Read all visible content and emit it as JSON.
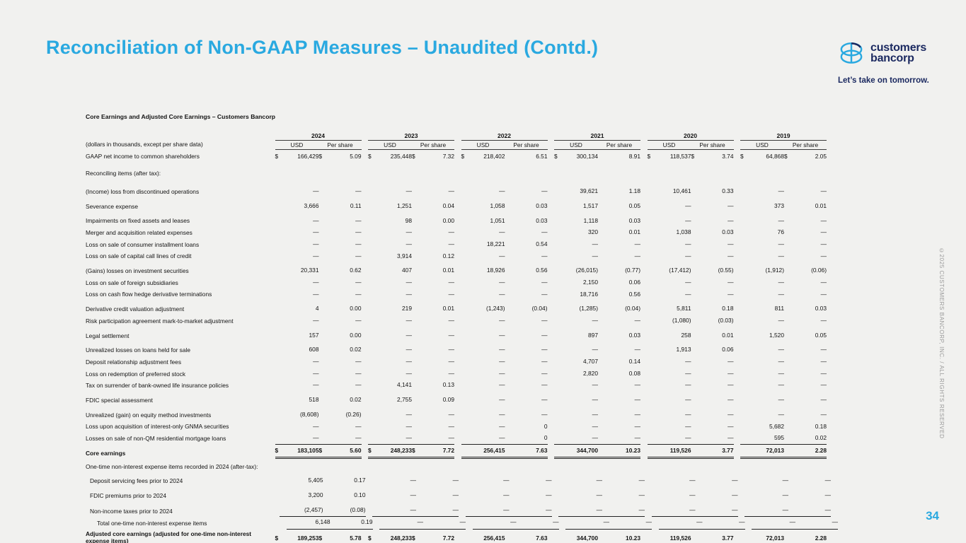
{
  "page": {
    "title": "Reconciliation of Non-GAAP Measures – Unaudited (Contd.)",
    "page_number": "34",
    "copyright": "©2025 CUSTOMERS BANCORP, INC. / ALL RIGHTS RESERVED",
    "colors": {
      "accent_blue": "#2AA9E0",
      "navy": "#1B2960",
      "background": "#F1F1EF"
    }
  },
  "logo": {
    "icon": "customers-bancorp-stacked-ovals-icon",
    "name_line1": "customers",
    "name_line2": "bancorp",
    "tagline": "Let’s take on tomorrow."
  },
  "table": {
    "title": "Core Earnings and Adjusted Core Earnings – Customers Bancorp",
    "note": "(dollars in thousands, except per share data)",
    "years": [
      "2024",
      "2023",
      "2022",
      "2021",
      "2020",
      "2019"
    ],
    "sub_headers": [
      "USD",
      "Per share"
    ],
    "rows": [
      {
        "label": "GAAP net income to common shareholders",
        "cells": [
          [
            "$ 166,429",
            "$ 5.09"
          ],
          [
            "$ 235,448",
            "$ 7.32"
          ],
          [
            "$ 218,402",
            "6.51"
          ],
          [
            "$ 300,134",
            "8.91"
          ],
          [
            "$ 118,537",
            "$ 3.74"
          ],
          [
            "$ 64,868",
            "$ 2.05"
          ]
        ]
      },
      {
        "label": "Reconciling items (after tax):",
        "section": true,
        "gap": "lg"
      },
      {
        "label": "(Income) loss from discontinued operations",
        "gap": "lg",
        "cells": [
          [
            "—",
            "—"
          ],
          [
            "—",
            "—"
          ],
          [
            "—",
            "—"
          ],
          [
            "39,621",
            "1.18"
          ],
          [
            "10,461",
            "0.33"
          ],
          [
            "—",
            "—"
          ]
        ]
      },
      {
        "label": "Severance expense",
        "gap": "md",
        "cells": [
          [
            "3,666",
            "0.11"
          ],
          [
            "1,251",
            "0.04"
          ],
          [
            "1,058",
            "0.03"
          ],
          [
            "1,517",
            "0.05"
          ],
          [
            "—",
            "—"
          ],
          [
            "373",
            "0.01"
          ]
        ]
      },
      {
        "label": "Impairments on fixed assets and leases",
        "gap": "md",
        "cells": [
          [
            "—",
            "—"
          ],
          [
            "98",
            "0.00"
          ],
          [
            "1,051",
            "0.03"
          ],
          [
            "1,118",
            "0.03"
          ],
          [
            "—",
            "—"
          ],
          [
            "—",
            "—"
          ]
        ]
      },
      {
        "label": "Merger and acquisition related expenses",
        "cells": [
          [
            "—",
            "—"
          ],
          [
            "—",
            "—"
          ],
          [
            "—",
            "—"
          ],
          [
            "320",
            "0.01"
          ],
          [
            "1,038",
            "0.03"
          ],
          [
            "76",
            "—"
          ]
        ]
      },
      {
        "label": "Loss on sale of consumer installment loans",
        "cells": [
          [
            "—",
            "—"
          ],
          [
            "—",
            "—"
          ],
          [
            "18,221",
            "0.54"
          ],
          [
            "—",
            "—"
          ],
          [
            "—",
            "—"
          ],
          [
            "—",
            "—"
          ]
        ]
      },
      {
        "label": "Loss on sale of capital call lines of credit",
        "cells": [
          [
            "—",
            "—"
          ],
          [
            "3,914",
            "0.12"
          ],
          [
            "—",
            "—"
          ],
          [
            "—",
            "—"
          ],
          [
            "—",
            "—"
          ],
          [
            "—",
            "—"
          ]
        ]
      },
      {
        "label": "(Gains) losses on investment securities",
        "gap": "md",
        "cells": [
          [
            "20,331",
            "0.62"
          ],
          [
            "407",
            "0.01"
          ],
          [
            "18,926",
            "0.56"
          ],
          [
            "(26,015)",
            "(0.77)"
          ],
          [
            "(17,412)",
            "(0.55)"
          ],
          [
            "(1,912)",
            "(0.06)"
          ]
        ]
      },
      {
        "label": "Loss on sale of foreign subsidiaries",
        "cells": [
          [
            "—",
            "—"
          ],
          [
            "—",
            "—"
          ],
          [
            "—",
            "—"
          ],
          [
            "2,150",
            "0.06"
          ],
          [
            "—",
            "—"
          ],
          [
            "—",
            "—"
          ]
        ]
      },
      {
        "label": "Loss on cash flow hedge derivative terminations",
        "cells": [
          [
            "—",
            "—"
          ],
          [
            "—",
            "—"
          ],
          [
            "—",
            "—"
          ],
          [
            "18,716",
            "0.56"
          ],
          [
            "—",
            "—"
          ],
          [
            "—",
            "—"
          ]
        ]
      },
      {
        "label": "Derivative credit valuation adjustment",
        "gap": "md",
        "cells": [
          [
            "4",
            "0.00"
          ],
          [
            "219",
            "0.01"
          ],
          [
            "(1,243)",
            "(0.04)"
          ],
          [
            "(1,285)",
            "(0.04)"
          ],
          [
            "5,811",
            "0.18"
          ],
          [
            "811",
            "0.03"
          ]
        ]
      },
      {
        "label": "Risk participation agreement mark-to-market adjustment",
        "cells": [
          [
            "—",
            "—"
          ],
          [
            "—",
            "—"
          ],
          [
            "—",
            "—"
          ],
          [
            "—",
            "—"
          ],
          [
            "(1,080)",
            "(0.03)"
          ],
          [
            "—",
            "—"
          ]
        ]
      },
      {
        "label": "Legal settlement",
        "gap": "md",
        "cells": [
          [
            "157",
            "0.00"
          ],
          [
            "—",
            "—"
          ],
          [
            "—",
            "—"
          ],
          [
            "897",
            "0.03"
          ],
          [
            "258",
            "0.01"
          ],
          [
            "1,520",
            "0.05"
          ]
        ]
      },
      {
        "label": "Unrealized losses on loans held for sale",
        "gap": "md",
        "cells": [
          [
            "608",
            "0.02"
          ],
          [
            "—",
            "—"
          ],
          [
            "—",
            "—"
          ],
          [
            "—",
            "—"
          ],
          [
            "1,913",
            "0.06"
          ],
          [
            "—",
            "—"
          ]
        ]
      },
      {
        "label": "Deposit relationship adjustment fees",
        "cells": [
          [
            "—",
            "—"
          ],
          [
            "—",
            "—"
          ],
          [
            "—",
            "—"
          ],
          [
            "4,707",
            "0.14"
          ],
          [
            "—",
            "—"
          ],
          [
            "—",
            "—"
          ]
        ]
      },
      {
        "label": "Loss on redemption of preferred stock",
        "cells": [
          [
            "—",
            "—"
          ],
          [
            "—",
            "—"
          ],
          [
            "—",
            "—"
          ],
          [
            "2,820",
            "0.08"
          ],
          [
            "—",
            "—"
          ],
          [
            "—",
            "—"
          ]
        ]
      },
      {
        "label": "Tax on surrender of bank-owned life insurance policies",
        "cells": [
          [
            "—",
            "—"
          ],
          [
            "4,141",
            "0.13"
          ],
          [
            "—",
            "—"
          ],
          [
            "—",
            "—"
          ],
          [
            "—",
            "—"
          ],
          [
            "—",
            "—"
          ]
        ]
      },
      {
        "label": "FDIC special assessment",
        "gap": "md",
        "cells": [
          [
            "518",
            "0.02"
          ],
          [
            "2,755",
            "0.09"
          ],
          [
            "—",
            "—"
          ],
          [
            "—",
            "—"
          ],
          [
            "—",
            "—"
          ],
          [
            "—",
            "—"
          ]
        ]
      },
      {
        "label": "Unrealized (gain) on equity method investments",
        "gap": "md",
        "cells": [
          [
            "(8,608)",
            "(0.26)"
          ],
          [
            "—",
            "—"
          ],
          [
            "—",
            "—"
          ],
          [
            "—",
            "—"
          ],
          [
            "—",
            "—"
          ],
          [
            "—",
            "—"
          ]
        ]
      },
      {
        "label": "Loss upon acquisition of interest-only GNMA securities",
        "cells": [
          [
            "—",
            "—"
          ],
          [
            "—",
            "—"
          ],
          [
            "—",
            "0"
          ],
          [
            "—",
            "—"
          ],
          [
            "—",
            "—"
          ],
          [
            "5,682",
            "0.18"
          ]
        ]
      },
      {
        "label": "Losses on sale of non-QM residential mortgage loans",
        "cells": [
          [
            "—",
            "—"
          ],
          [
            "—",
            "—"
          ],
          [
            "—",
            "0"
          ],
          [
            "—",
            "—"
          ],
          [
            "—",
            "—"
          ],
          [
            "595",
            "0.02"
          ]
        ]
      },
      {
        "label": "Core earnings",
        "bold": true,
        "rule": "core",
        "cells": [
          [
            "$ 183,105",
            "$ 5.60"
          ],
          [
            "$ 248,233",
            "$ 7.72"
          ],
          [
            "256,415",
            "7.63"
          ],
          [
            "344,700",
            "10.23"
          ],
          [
            "119,526",
            "3.77"
          ],
          [
            "72,013",
            "2.28"
          ]
        ]
      },
      {
        "label": "One-time non-interest expense items recorded in 2024 (after-tax):",
        "section": true,
        "gap": "md"
      },
      {
        "label": "Deposit servicing fees prior to 2024",
        "indent": 1,
        "gap": "md",
        "cells": [
          [
            "5,405",
            "0.17"
          ],
          [
            "—",
            "—"
          ],
          [
            "—",
            "—"
          ],
          [
            "—",
            "—"
          ],
          [
            "—",
            "—"
          ],
          [
            "—",
            "—"
          ]
        ]
      },
      {
        "label": "FDIC premiums prior to 2024",
        "indent": 1,
        "gap": "md",
        "cells": [
          [
            "3,200",
            "0.10"
          ],
          [
            "—",
            "—"
          ],
          [
            "—",
            "—"
          ],
          [
            "—",
            "—"
          ],
          [
            "—",
            "—"
          ],
          [
            "—",
            "—"
          ]
        ]
      },
      {
        "label": "Non-income taxes prior to 2024",
        "indent": 1,
        "gap": "md",
        "rule": "under",
        "cells": [
          [
            "(2,457)",
            "(0.08)"
          ],
          [
            "—",
            "—"
          ],
          [
            "—",
            "—"
          ],
          [
            "—",
            "—"
          ],
          [
            "—",
            "—"
          ],
          [
            "—",
            "—"
          ]
        ]
      },
      {
        "label": "Total one-time non-interest expense items",
        "indent": 2,
        "rule": "under",
        "cells": [
          [
            "6,148",
            "0.19"
          ],
          [
            "—",
            "—"
          ],
          [
            "—",
            "—"
          ],
          [
            "—",
            "—"
          ],
          [
            "—",
            "—"
          ],
          [
            "—",
            "—"
          ]
        ]
      },
      {
        "label": "Adjusted core earnings (adjusted for one-time non-interest expense items)",
        "bold": true,
        "wrap": true,
        "rule": "dblb",
        "cells": [
          [
            "$ 189,253",
            "$ 5.78"
          ],
          [
            "$ 248,233",
            "$ 7.72"
          ],
          [
            "256,415",
            "7.63"
          ],
          [
            "344,700",
            "10.23"
          ],
          [
            "119,526",
            "3.77"
          ],
          [
            "72,013",
            "2.28"
          ]
        ]
      }
    ]
  }
}
